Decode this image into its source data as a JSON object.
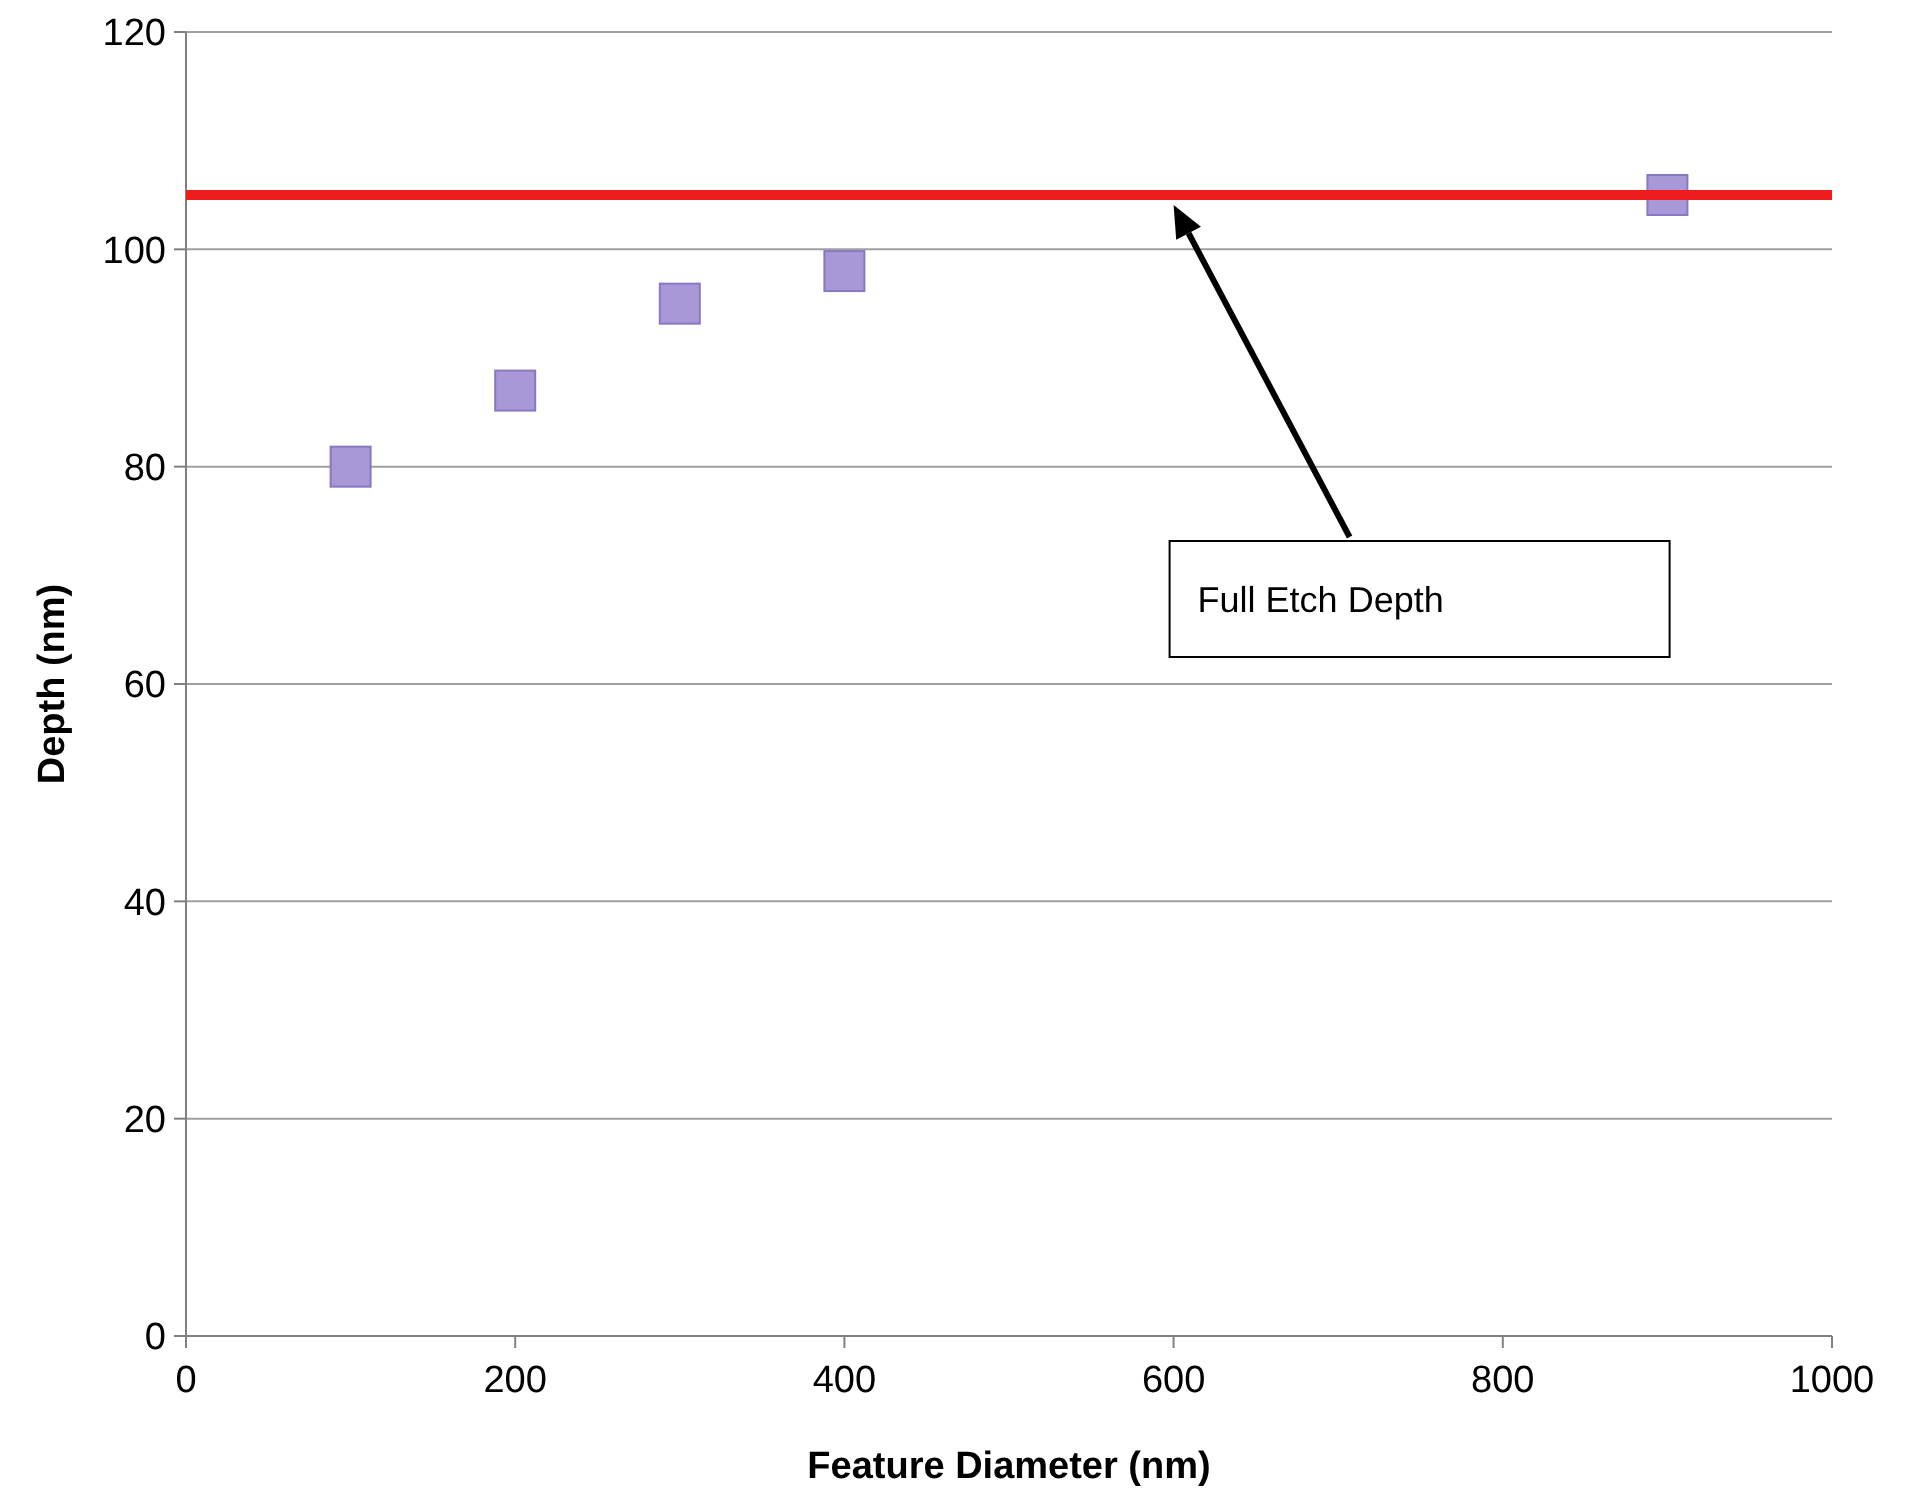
{
  "chart_data": {
    "type": "scatter",
    "xlabel": "Feature Diameter (nm)",
    "ylabel": "Depth (nm)",
    "x": [
      100,
      200,
      300,
      400,
      900
    ],
    "series": [
      {
        "color": "#a898d8",
        "values": [
          80,
          87,
          95,
          98,
          105
        ]
      }
    ],
    "xlim": [
      0,
      1000
    ],
    "xticks": [
      0,
      200,
      400,
      600,
      800,
      1000
    ],
    "ylim": [
      0,
      120
    ],
    "yticks": [
      0,
      20,
      40,
      60,
      80,
      100,
      120
    ],
    "grid": "y",
    "marker": "square",
    "ref_lines": [
      {
        "axis": "y",
        "value": 105,
        "color": "#ee1c1c"
      }
    ],
    "annotations": [
      "Full Etch Depth"
    ]
  }
}
